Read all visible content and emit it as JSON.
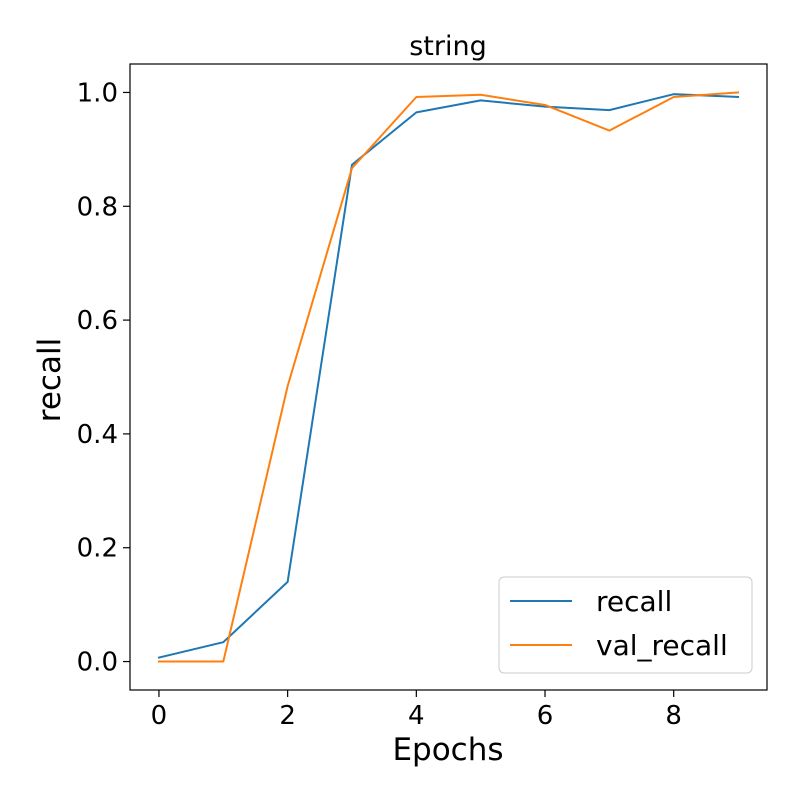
{
  "chart_data": {
    "type": "line",
    "title": "string",
    "xlabel": "Epochs",
    "ylabel": "recall",
    "xlim": [
      -0.45,
      9.45
    ],
    "ylim": [
      -0.05,
      1.05
    ],
    "xticks": [
      0,
      2,
      4,
      6,
      8
    ],
    "xtick_labels": [
      "0",
      "2",
      "4",
      "6",
      "8"
    ],
    "yticks": [
      0.0,
      0.2,
      0.4,
      0.6,
      0.8,
      1.0
    ],
    "ytick_labels": [
      "0.0",
      "0.2",
      "0.4",
      "0.6",
      "0.8",
      "1.0"
    ],
    "grid": false,
    "legend_position": "bottom-right",
    "x": [
      0,
      1,
      2,
      3,
      4,
      5,
      6,
      7,
      8,
      9
    ],
    "series": [
      {
        "name": "recall",
        "color": "#1f77b4",
        "values": [
          0.007,
          0.034,
          0.14,
          0.873,
          0.965,
          0.986,
          0.975,
          0.969,
          0.997,
          0.992
        ]
      },
      {
        "name": "val_recall",
        "color": "#ff7f0e",
        "values": [
          0.0,
          0.0,
          0.484,
          0.867,
          0.992,
          0.996,
          0.978,
          0.933,
          0.992,
          1.0
        ]
      }
    ]
  }
}
